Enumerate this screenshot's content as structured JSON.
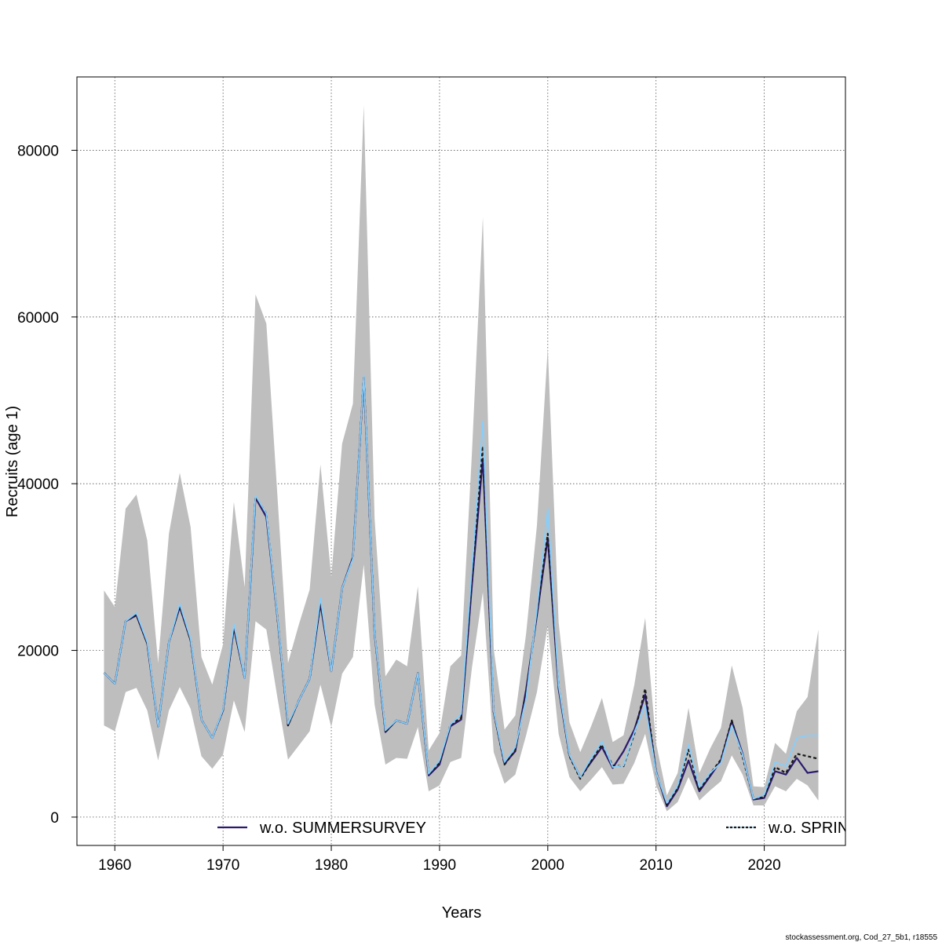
{
  "chart_data": {
    "type": "line",
    "xlabel": "Years",
    "ylabel": "Recruits (age 1)",
    "xlim": [
      1956.5,
      2027.5
    ],
    "ylim": [
      -3400,
      88800
    ],
    "x_ticks": [
      1960,
      1970,
      1980,
      1990,
      2000,
      2010,
      2020
    ],
    "y_ticks": [
      0,
      20000,
      40000,
      60000,
      80000
    ],
    "grid": true,
    "legend_position": "bottom",
    "x": [
      1959,
      1960,
      1961,
      1962,
      1963,
      1964,
      1965,
      1966,
      1967,
      1968,
      1969,
      1970,
      1971,
      1972,
      1973,
      1974,
      1975,
      1976,
      1977,
      1978,
      1979,
      1980,
      1981,
      1982,
      1983,
      1984,
      1985,
      1986,
      1987,
      1988,
      1989,
      1990,
      1991,
      1992,
      1993,
      1994,
      1995,
      1996,
      1997,
      1998,
      1999,
      2000,
      2001,
      2002,
      2003,
      2004,
      2005,
      2006,
      2007,
      2008,
      2009,
      2010,
      2011,
      2012,
      2013,
      2014,
      2015,
      2016,
      2017,
      2018,
      2019,
      2020,
      2021,
      2022,
      2023,
      2024,
      2025
    ],
    "confidence_band": {
      "color": "#bebebe",
      "lower": [
        11000,
        10300,
        15000,
        15500,
        12800,
        6800,
        12800,
        15600,
        13000,
        7300,
        5800,
        7500,
        14000,
        10200,
        23500,
        22500,
        14500,
        6900,
        8600,
        10300,
        15900,
        10800,
        17200,
        19200,
        30300,
        13500,
        6300,
        7100,
        7000,
        10800,
        3100,
        3800,
        6600,
        7100,
        18000,
        27000,
        7800,
        4000,
        5100,
        9800,
        15000,
        23000,
        10000,
        4800,
        3100,
        4500,
        6000,
        3900,
        4000,
        6500,
        10000,
        3800,
        700,
        1800,
        4800,
        2000,
        3200,
        4300,
        7400,
        5100,
        1400,
        1400,
        3700,
        3100,
        4600,
        3800,
        2000
      ],
      "upper": [
        27200,
        25200,
        37000,
        38700,
        33200,
        18500,
        34000,
        41300,
        34800,
        19200,
        15900,
        20700,
        37800,
        27600,
        62700,
        59200,
        39000,
        18500,
        23100,
        27300,
        42300,
        28800,
        44800,
        49600,
        85400,
        35800,
        16900,
        18900,
        18100,
        27700,
        8000,
        10100,
        18100,
        19400,
        43900,
        72000,
        20200,
        10500,
        12200,
        22000,
        35000,
        56300,
        23400,
        11400,
        7800,
        10900,
        14300,
        9000,
        9800,
        15900,
        23900,
        8900,
        2600,
        5300,
        13100,
        5300,
        8200,
        10700,
        18200,
        13100,
        3700,
        3600,
        8900,
        7600,
        12700,
        14400,
        22500
      ]
    },
    "series": [
      {
        "name": "w.o. SUMMERSURVEY",
        "color": "#2b1a6e",
        "dash": false,
        "values": [
          17300,
          16000,
          23500,
          24200,
          20800,
          10900,
          21000,
          25200,
          21200,
          11700,
          9500,
          12800,
          22700,
          16700,
          38300,
          36000,
          24200,
          11000,
          14000,
          16600,
          25600,
          17500,
          27500,
          31200,
          52800,
          21900,
          10200,
          11600,
          11200,
          17300,
          5000,
          6300,
          10900,
          11700,
          28000,
          43000,
          12600,
          6400,
          7900,
          15300,
          24200,
          33500,
          15400,
          7400,
          4800,
          6600,
          8400,
          5900,
          7900,
          10500,
          14700,
          5500,
          1300,
          3300,
          6800,
          3100,
          4900,
          6800,
          11500,
          7600,
          2100,
          2300,
          5500,
          5100,
          7100,
          5300,
          5500
        ]
      },
      {
        "name": "w.o. SPRINGSURVEY",
        "color": "#1a1a1a",
        "dash": true,
        "values": [
          17300,
          16000,
          23500,
          24300,
          20800,
          10900,
          21000,
          25300,
          21200,
          11700,
          9500,
          12800,
          22800,
          16700,
          38500,
          36400,
          24200,
          11000,
          14000,
          16600,
          25800,
          17500,
          27500,
          31100,
          52900,
          22000,
          10200,
          11600,
          11200,
          17300,
          5100,
          6500,
          11100,
          11900,
          29000,
          44500,
          12600,
          6300,
          8000,
          14800,
          24500,
          34000,
          15700,
          7300,
          4600,
          6700,
          8700,
          6200,
          6100,
          10000,
          15400,
          5400,
          1500,
          3500,
          8100,
          3200,
          5200,
          6900,
          11600,
          7200,
          2200,
          2400,
          6000,
          5300,
          7600,
          7300,
          7000
        ]
      },
      {
        "name": "",
        "color": "#87cefa",
        "dash": false,
        "values": [
          17300,
          16000,
          23500,
          24500,
          21000,
          10900,
          21000,
          25600,
          21400,
          11700,
          9500,
          12900,
          23200,
          16700,
          38600,
          36400,
          24300,
          11200,
          14000,
          16600,
          26300,
          17500,
          27500,
          31000,
          53000,
          22000,
          10400,
          11600,
          11200,
          17300,
          5200,
          6800,
          11100,
          12400,
          30000,
          47500,
          12700,
          6600,
          8400,
          14200,
          24900,
          37000,
          15800,
          7500,
          4800,
          7100,
          9100,
          6000,
          6200,
          10200,
          13400,
          5400,
          1700,
          3800,
          8700,
          3600,
          5300,
          6500,
          11000,
          7500,
          2200,
          2700,
          6600,
          6100,
          9500,
          9800,
          9800
        ]
      }
    ],
    "legend": [
      {
        "label": "w.o. SUMMERSURVEY",
        "color": "#2b1a6e",
        "dash": false
      },
      {
        "label": "w.o. SPRIN",
        "color": "#1a1a1a",
        "dash": true
      }
    ]
  },
  "footer": "stockassessment.org, Cod_27_5b1, r18555"
}
